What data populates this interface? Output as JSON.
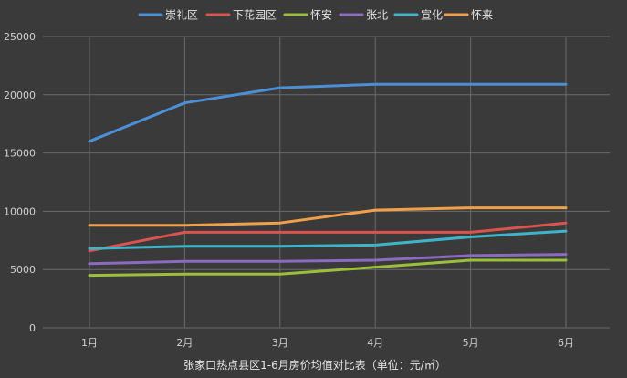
{
  "chart_data": {
    "type": "line",
    "title": "张家口热点县区1-6月房价均值对比表（单位：元/㎡）",
    "xlabel": "",
    "ylabel": "",
    "categories": [
      "1月",
      "2月",
      "3月",
      "4月",
      "5月",
      "6月"
    ],
    "ylim": [
      0,
      25000
    ],
    "yticks": [
      0,
      5000,
      10000,
      15000,
      20000,
      25000
    ],
    "grid": true,
    "legend_position": "top",
    "series": [
      {
        "name": "崇礼区",
        "color": "#4d8fd6",
        "values": [
          16000,
          19300,
          20600,
          20900,
          20900,
          20900
        ]
      },
      {
        "name": "下花园区",
        "color": "#d9534f",
        "values": [
          6600,
          8200,
          8200,
          8200,
          8200,
          9000
        ]
      },
      {
        "name": "怀安",
        "color": "#9bbf3a",
        "values": [
          4500,
          4600,
          4600,
          5200,
          5800,
          5800
        ]
      },
      {
        "name": "张北",
        "color": "#8a6bbf",
        "values": [
          5500,
          5700,
          5700,
          5800,
          6200,
          6300
        ]
      },
      {
        "name": "宣化",
        "color": "#3fb3c9",
        "values": [
          6800,
          7000,
          7000,
          7100,
          7800,
          8300
        ]
      },
      {
        "name": "怀来",
        "color": "#f0a04b",
        "values": [
          8800,
          8800,
          9000,
          10100,
          10300,
          10300
        ]
      }
    ]
  }
}
